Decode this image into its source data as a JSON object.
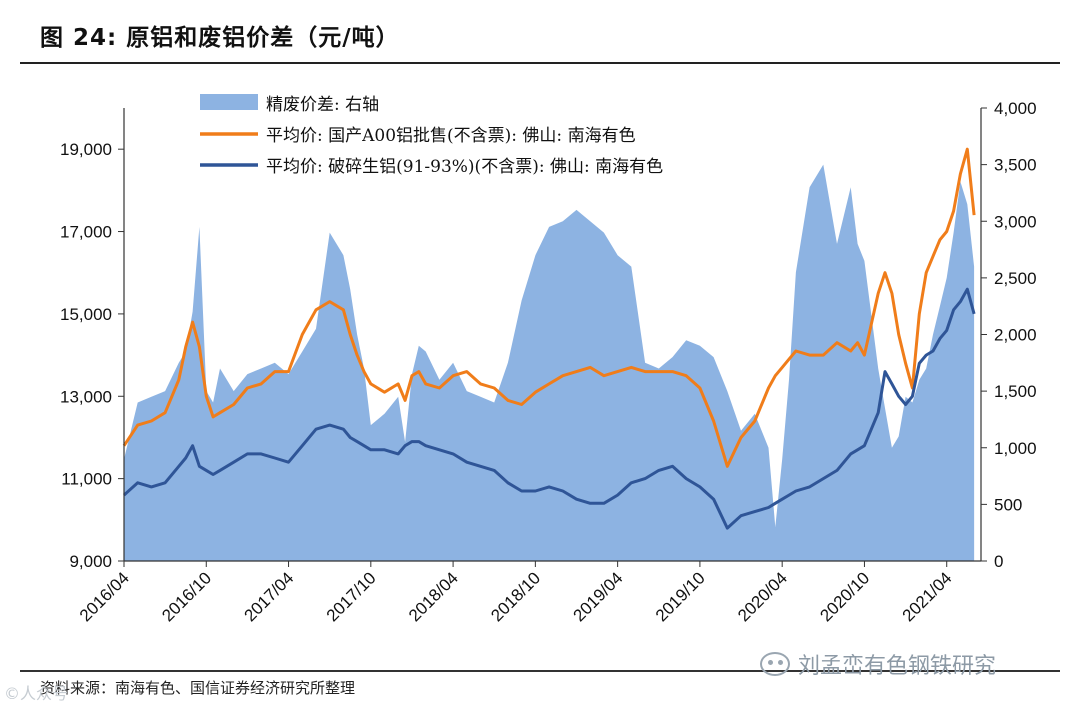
{
  "figure": {
    "title": "图 24:  原铝和废铝价差（元/吨）",
    "source": "资料来源：南海有色、国信证券经济研究所整理",
    "watermark": "刘孟峦有色钢铁研究",
    "watermark_left": "©人众号"
  },
  "colors": {
    "spread_area": "#8DB3E2",
    "a00_line": "#F07D1A",
    "scrap_line": "#2F5597",
    "axis": "#333333"
  },
  "chart_data": {
    "type": "line+area",
    "title": "原铝和废铝价差（元/吨）",
    "x_tick_labels": [
      "2016/04",
      "2016/10",
      "2017/04",
      "2017/10",
      "2018/04",
      "2018/10",
      "2019/04",
      "2019/10",
      "2020/04",
      "2020/10",
      "2021/04"
    ],
    "x_range": [
      0,
      62.5
    ],
    "left_axis": {
      "min": 9000,
      "max": 20000,
      "ticks": [
        9000,
        11000,
        13000,
        15000,
        17000,
        19000
      ],
      "tick_labels": [
        "9,000",
        "11,000",
        "13,000",
        "15,000",
        "17,000",
        "19,000"
      ]
    },
    "right_axis": {
      "min": 0,
      "max": 4000,
      "ticks": [
        0,
        500,
        1000,
        1500,
        2000,
        2500,
        3000,
        3500,
        4000
      ],
      "tick_labels": [
        "0",
        "500",
        "1,000",
        "1,500",
        "2,000",
        "2,500",
        "3,000",
        "3,500",
        "4,000"
      ]
    },
    "legend": [
      {
        "key": "spread",
        "label": "精废价差: 右轴"
      },
      {
        "key": "a00",
        "label": "平均价: 国产A00铝批售(不含票): 佛山: 南海有色"
      },
      {
        "key": "scrap",
        "label": "平均价: 破碎生铝(91-93%)(不含票): 佛山: 南海有色"
      }
    ],
    "x_months": [
      0,
      1,
      2,
      3,
      4,
      4.5,
      5,
      5.5,
      6,
      6.5,
      7,
      8,
      9,
      10,
      11,
      12,
      13,
      14,
      15,
      16,
      16.5,
      17,
      17.5,
      18,
      19,
      20,
      20.5,
      21,
      21.5,
      22,
      23,
      24,
      25,
      26,
      27,
      28,
      29,
      30,
      31,
      32,
      33,
      34,
      35,
      36,
      37,
      38,
      39,
      40,
      41,
      42,
      43,
      44,
      45,
      46,
      47,
      47.5,
      48,
      48.5,
      49,
      50,
      51,
      52,
      53,
      53.5,
      54,
      55,
      55.5,
      56,
      56.5,
      57,
      57.5,
      58,
      58.5,
      59,
      59.5,
      60,
      60.5,
      61,
      61.5,
      62
    ],
    "series": [
      {
        "name": "spread",
        "axis": "right",
        "values": [
          900,
          1400,
          1450,
          1500,
          1750,
          1850,
          2200,
          2950,
          1500,
          1400,
          1700,
          1500,
          1650,
          1700,
          1750,
          1650,
          1850,
          2050,
          2900,
          2700,
          2400,
          2000,
          1700,
          1200,
          1300,
          1450,
          1050,
          1650,
          1900,
          1850,
          1600,
          1750,
          1500,
          1450,
          1400,
          1750,
          2300,
          2700,
          2950,
          3000,
          3100,
          3000,
          2900,
          2700,
          2600,
          1750,
          1700,
          1800,
          1950,
          1900,
          1800,
          1500,
          1150,
          1300,
          1000,
          300,
          900,
          1600,
          2550,
          3300,
          3500,
          2800,
          3300,
          2800,
          2650,
          1700,
          1350,
          1000,
          1100,
          1450,
          1400,
          1600,
          1700,
          2000,
          2250,
          2500,
          2900,
          3350,
          3150,
          2600
        ]
      },
      {
        "name": "a00",
        "axis": "left",
        "values": [
          11800,
          12300,
          12400,
          12600,
          13400,
          14200,
          14800,
          14200,
          13000,
          12500,
          12600,
          12800,
          13200,
          13300,
          13600,
          13600,
          14500,
          15100,
          15300,
          15100,
          14500,
          14000,
          13600,
          13300,
          13100,
          13300,
          12900,
          13500,
          13600,
          13300,
          13200,
          13500,
          13600,
          13300,
          13200,
          12900,
          12800,
          13100,
          13300,
          13500,
          13600,
          13700,
          13500,
          13600,
          13700,
          13600,
          13600,
          13600,
          13500,
          13200,
          12400,
          11300,
          12000,
          12400,
          13200,
          13500,
          13700,
          13900,
          14100,
          14000,
          14000,
          14300,
          14100,
          14300,
          14000,
          15500,
          16000,
          15500,
          14500,
          13800,
          13200,
          15000,
          16000,
          16400,
          16800,
          17000,
          17500,
          18400,
          19000,
          17400
        ]
      },
      {
        "name": "scrap",
        "axis": "left",
        "values": [
          10600,
          10900,
          10800,
          10900,
          11300,
          11500,
          11800,
          11300,
          11200,
          11100,
          11200,
          11400,
          11600,
          11600,
          11500,
          11400,
          11800,
          12200,
          12300,
          12200,
          12000,
          11900,
          11800,
          11700,
          11700,
          11600,
          11800,
          11900,
          11900,
          11800,
          11700,
          11600,
          11400,
          11300,
          11200,
          10900,
          10700,
          10700,
          10800,
          10700,
          10500,
          10400,
          10400,
          10600,
          10900,
          11000,
          11200,
          11300,
          11000,
          10800,
          10500,
          9800,
          10100,
          10200,
          10300,
          10400,
          10500,
          10600,
          10700,
          10800,
          11000,
          11200,
          11600,
          11700,
          11800,
          12600,
          13600,
          13300,
          13000,
          12800,
          13000,
          13800,
          14000,
          14100,
          14400,
          14600,
          15100,
          15300,
          15600,
          15000
        ]
      }
    ]
  }
}
